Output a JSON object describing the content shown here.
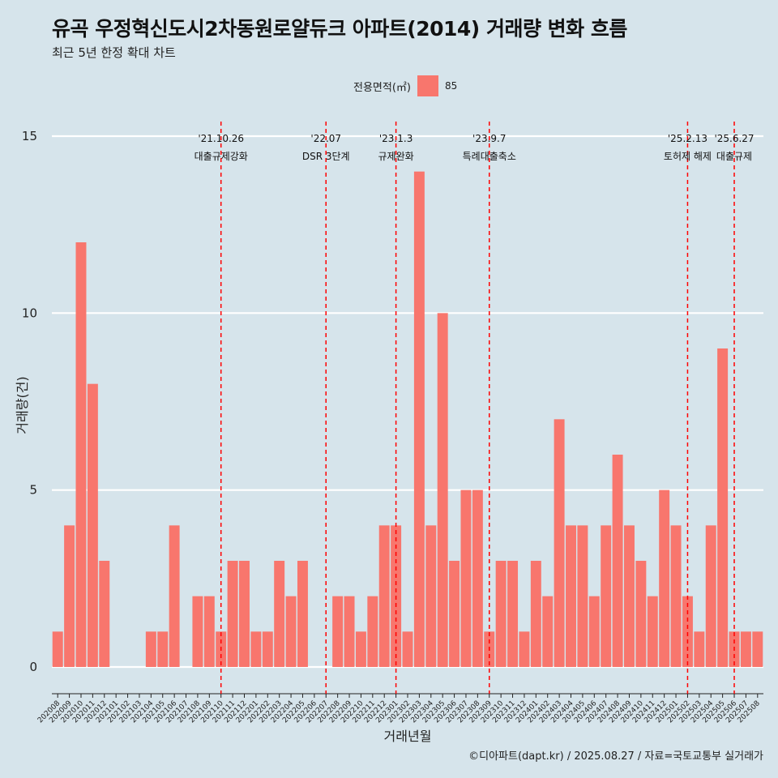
{
  "title": "유곡 우정혁신도시2차동원로얄듀크 아파트(2014) 거래량 변화 흐름",
  "subtitle": "최근 5년 한정 확대 차트",
  "legend": {
    "title": "전용면적(㎡)",
    "item": "85"
  },
  "caption": "©디아파트(dapt.kr) / 2025.08.27 / 자료=국토교통부 실거래가",
  "colors": {
    "background": "#d6e4eb",
    "bar": "#f8766d",
    "event_line": "#ff0000",
    "grid": "#ffffff"
  },
  "chart_data": {
    "type": "bar",
    "title": "유곡 우정혁신도시2차동원로얄듀크 아파트(2014) 거래량 변화 흐름",
    "subtitle": "최근 5년 한정 확대 차트",
    "xlabel": "거래년월",
    "ylabel": "거래량(건)",
    "ylim": [
      0,
      15
    ],
    "yticks": [
      0,
      5,
      10,
      15
    ],
    "grid": true,
    "legend_position": "top",
    "categories": [
      "202008",
      "202009",
      "202010",
      "202011",
      "202012",
      "202101",
      "202102",
      "202103",
      "202104",
      "202105",
      "202106",
      "202107",
      "202108",
      "202109",
      "202110",
      "202111",
      "202112",
      "202201",
      "202202",
      "202203",
      "202204",
      "202205",
      "202206",
      "202207",
      "202208",
      "202209",
      "202210",
      "202211",
      "202212",
      "202301",
      "202302",
      "202303",
      "202304",
      "202305",
      "202306",
      "202307",
      "202308",
      "202309",
      "202310",
      "202311",
      "202312",
      "202401",
      "202402",
      "202403",
      "202404",
      "202405",
      "202406",
      "202407",
      "202408",
      "202409",
      "202410",
      "202411",
      "202412",
      "202501",
      "202502",
      "202503",
      "202504",
      "202505",
      "202506",
      "202507",
      "202508"
    ],
    "series": [
      {
        "name": "85",
        "values": [
          1,
          4,
          12,
          8,
          3,
          0,
          0,
          0,
          1,
          1,
          4,
          0,
          2,
          2,
          1,
          3,
          3,
          1,
          1,
          3,
          2,
          3,
          0,
          0,
          2,
          2,
          1,
          2,
          4,
          4,
          1,
          14,
          4,
          10,
          3,
          5,
          5,
          1,
          3,
          3,
          1,
          3,
          2,
          7,
          4,
          4,
          2,
          4,
          6,
          4,
          3,
          2,
          5,
          4,
          2,
          1,
          4,
          9,
          1,
          1,
          1
        ]
      }
    ],
    "events": [
      {
        "date": "'21.10.26",
        "label": "대출규제강화",
        "category": "202110"
      },
      {
        "date": "'22.07",
        "label": "DSR 3단계",
        "category": "202207"
      },
      {
        "date": "'23.1.3",
        "label": "규제완화",
        "category": "202301"
      },
      {
        "date": "'23.9.7",
        "label": "특례대출축소",
        "category": "202309"
      },
      {
        "date": "'25.2.13",
        "label": "토허제 해제",
        "category": "202502"
      },
      {
        "date": "'25.6.27",
        "label": "대출규제",
        "category": "202506"
      }
    ]
  }
}
